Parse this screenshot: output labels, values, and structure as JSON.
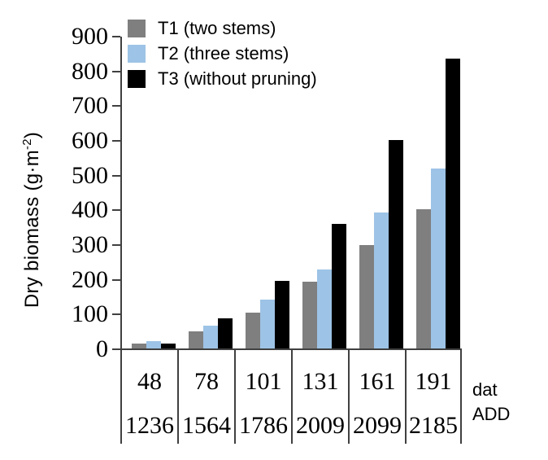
{
  "chart_data": {
    "type": "bar",
    "title": "",
    "ylabel": "Dry biomass (g·m⁻²)",
    "ylabel_parts": {
      "main": "Dry biomass (g·m",
      "sup": "-2",
      "close": ")"
    },
    "ylim": [
      0,
      900
    ],
    "ytick_step": 100,
    "grid": false,
    "legend_position": "top-left",
    "axis_color": "#404040",
    "text_color": "#000000",
    "x_row_labels": [
      "dat",
      "ADD"
    ],
    "categories_dat": [
      "48",
      "78",
      "101",
      "131",
      "161",
      "191"
    ],
    "categories_add": [
      "1236",
      "1564",
      "1786",
      "2009",
      "2099",
      "2185"
    ],
    "series": [
      {
        "key": "t1",
        "name": "T1 (two stems)",
        "color": "#7f7f7f",
        "values": [
          15,
          49,
          104,
          192,
          299,
          403
        ]
      },
      {
        "key": "t2",
        "name": "T2 (three stems)",
        "color": "#9dc3e6",
        "values": [
          20,
          65,
          141,
          229,
          393,
          520
        ]
      },
      {
        "key": "t3",
        "name": "T3 (without pruning)",
        "color": "#000000",
        "values": [
          14,
          87,
          194,
          359,
          601,
          836
        ]
      }
    ]
  }
}
